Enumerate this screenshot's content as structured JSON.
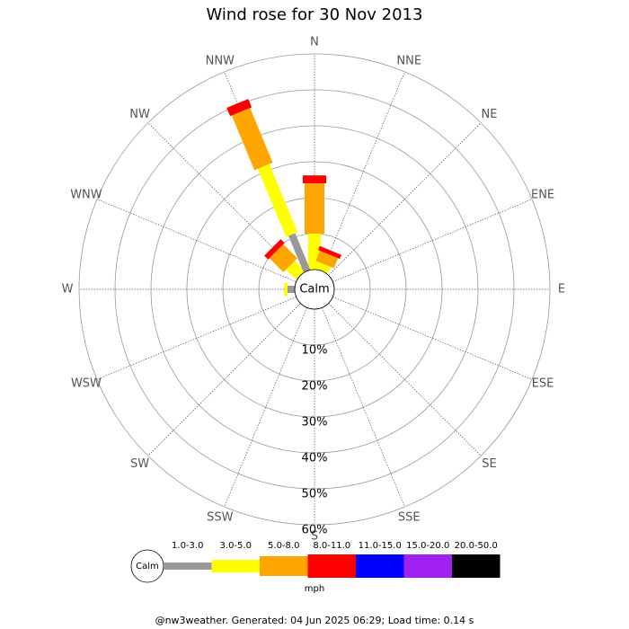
{
  "chart_data": {
    "type": "windrose",
    "title": "Wind rose for 30 Nov 2013",
    "directions": [
      "N",
      "NNE",
      "NE",
      "ENE",
      "E",
      "ESE",
      "SE",
      "SSE",
      "S",
      "SSW",
      "SW",
      "WSW",
      "W",
      "WNW",
      "NW",
      "NNW"
    ],
    "center_label": "Calm",
    "rlim": [
      0,
      60
    ],
    "rticks": [
      {
        "value": 10,
        "label": "10%"
      },
      {
        "value": 20,
        "label": "20%"
      },
      {
        "value": 30,
        "label": "30%"
      },
      {
        "value": 40,
        "label": "40%"
      },
      {
        "value": 50,
        "label": "50%"
      },
      {
        "value": 60,
        "label": "60%"
      }
    ],
    "series": [
      {
        "name": "1.0-3.0",
        "color": "#999999",
        "values": [
          0,
          0,
          0,
          0,
          0,
          0,
          0,
          0,
          0,
          0,
          0,
          0,
          2,
          0,
          0,
          11
        ]
      },
      {
        "name": "3.0-5.0",
        "color": "#ffff00",
        "values": [
          10,
          2,
          0,
          0,
          0,
          0,
          0,
          0,
          0,
          0,
          0,
          0,
          1,
          0,
          4,
          20.5
        ]
      },
      {
        "name": "5.0-8.0",
        "color": "#ffa500",
        "values": [
          14,
          3,
          0,
          0,
          0,
          0,
          0,
          0,
          0,
          0,
          0,
          0,
          0,
          0,
          5.5,
          16.5
        ]
      },
      {
        "name": "8.0-11.0",
        "color": "#ff0000",
        "values": [
          2.2,
          1.2,
          0,
          0,
          0,
          0,
          0,
          0,
          0,
          0,
          0,
          0,
          0,
          0,
          1.5,
          2.5
        ]
      },
      {
        "name": "11.0-15.0",
        "color": "#0000ff",
        "values": [
          0,
          0,
          0,
          0,
          0,
          0,
          0,
          0,
          0,
          0,
          0,
          0,
          0,
          0,
          0,
          0
        ]
      },
      {
        "name": "15.0-20.0",
        "color": "#a020f0",
        "values": [
          0,
          0,
          0,
          0,
          0,
          0,
          0,
          0,
          0,
          0,
          0,
          0,
          0,
          0,
          0,
          0
        ]
      },
      {
        "name": "20.0-50.0",
        "color": "#000000",
        "values": [
          0,
          0,
          0,
          0,
          0,
          0,
          0,
          0,
          0,
          0,
          0,
          0,
          0,
          0,
          0,
          0
        ]
      }
    ],
    "unit": "mph",
    "footer": "@nw3weather. Generated: 04 Jun 2025 06:29; Load time: 0.14 s"
  }
}
